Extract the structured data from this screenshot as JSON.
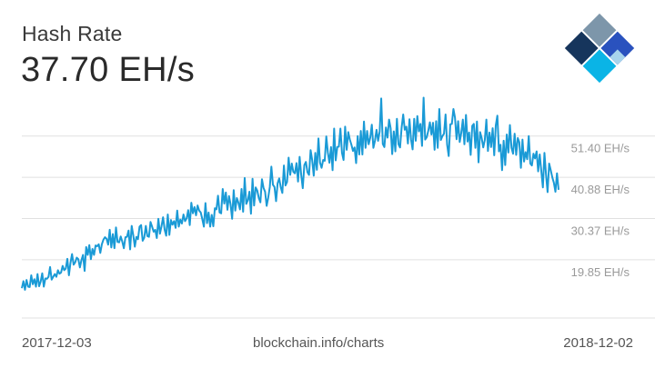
{
  "header": {
    "title": "Hash Rate",
    "current_value": "37.70 EH/s"
  },
  "footer": {
    "start_date": "2017-12-03",
    "source": "blockchain.info/charts",
    "end_date": "2018-12-02"
  },
  "colors": {
    "line": "#1a9ad6",
    "grid": "#e0e0e0",
    "logo_dark": "#16355c",
    "logo_slate": "#7d96aa",
    "logo_blue": "#2a52be",
    "logo_cyan": "#0ab4e6",
    "logo_light": "#a8d4ec"
  },
  "logo": {
    "icon": "blockchain-logo-icon"
  },
  "chart_data": {
    "type": "line",
    "title": "Hash Rate",
    "xlabel": "",
    "ylabel": "",
    "x_start": "2017-12-03",
    "x_end": "2018-12-02",
    "ylim": [
      5.0,
      62.0
    ],
    "yticks": [
      19.85,
      30.37,
      40.88,
      51.4
    ],
    "ytick_labels": [
      "19.85 EH/s",
      "30.37 EH/s",
      "40.88 EH/s",
      "51.40 EH/s"
    ],
    "grid": true,
    "legend": "none",
    "series": [
      {
        "values": [
          12.6,
          14.4,
          12.2,
          14.7,
          13.0,
          12.9,
          15.9,
          13.6,
          14.9,
          13.0,
          16.2,
          13.1,
          14.3,
          16.4,
          13.0,
          15.1,
          15.0,
          15.5,
          18.0,
          14.8,
          15.5,
          16.2,
          15.5,
          17.2,
          16.3,
          16.6,
          18.3,
          17.2,
          17.6,
          20.1,
          15.9,
          19.1,
          21.3,
          18.6,
          19.2,
          20.4,
          20.0,
          17.9,
          19.8,
          21.1,
          17.0,
          23.1,
          21.1,
          23.6,
          20.0,
          22.6,
          21.1,
          23.5,
          23.3,
          23.8,
          21.6,
          23.8,
          25.0,
          25.6,
          25.2,
          23.7,
          27.5,
          23.0,
          26.4,
          22.8,
          28.1,
          24.4,
          24.3,
          25.8,
          24.5,
          22.8,
          25.6,
          25.7,
          27.3,
          22.5,
          28.5,
          26.1,
          23.2,
          25.7,
          25.1,
          28.3,
          28.7,
          24.7,
          25.5,
          28.5,
          25.9,
          25.7,
          29.5,
          28.3,
          27.0,
          27.5,
          25.4,
          30.3,
          26.5,
          28.4,
          30.7,
          27.5,
          26.0,
          31.4,
          26.2,
          30.0,
          28.8,
          29.7,
          28.0,
          32.4,
          28.3,
          30.1,
          29.1,
          31.4,
          29.7,
          30.4,
          32.5,
          28.7,
          34.4,
          31.7,
          33.3,
          31.2,
          33.7,
          32.4,
          31.9,
          30.2,
          28.3,
          34.3,
          29.2,
          31.9,
          28.3,
          31.3,
          28.4,
          33.0,
          32.7,
          36.2,
          31.9,
          31.7,
          37.9,
          34.2,
          37.0,
          32.6,
          36.1,
          34.0,
          30.3,
          37.6,
          32.4,
          35.6,
          34.4,
          32.7,
          37.9,
          32.1,
          40.7,
          34.1,
          35.0,
          37.2,
          31.6,
          40.5,
          33.7,
          38.3,
          37.5,
          35.6,
          34.5,
          40.4,
          38.2,
          37.2,
          33.6,
          35.7,
          38.4,
          43.6,
          39.0,
          38.4,
          34.8,
          39.4,
          40.6,
          38.3,
          36.9,
          43.9,
          38.8,
          39.7,
          45.9,
          41.5,
          44.4,
          42.3,
          41.9,
          44.5,
          39.8,
          46.1,
          41.5,
          38.1,
          44.0,
          44.8,
          42.2,
          41.5,
          47.8,
          45.3,
          41.3,
          47.1,
          42.8,
          50.8,
          44.6,
          43.3,
          45.3,
          45.1,
          51.3,
          47.2,
          44.6,
          48.6,
          42.7,
          53.3,
          45.2,
          48.6,
          48.7,
          53.3,
          47.1,
          45.3,
          53.8,
          47.9,
          52.4,
          50.5,
          49.2,
          47.6,
          48.5,
          44.5,
          51.4,
          46.7,
          52.7,
          46.7,
          55.1,
          48.4,
          52.7,
          49.3,
          51.0,
          54.3,
          48.4,
          50.2,
          53.0,
          50.2,
          52.5,
          61.0,
          49.4,
          48.6,
          53.6,
          51.0,
          55.6,
          53.4,
          46.8,
          52.6,
          47.5,
          55.8,
          49.3,
          48.5,
          53.6,
          56.9,
          53.0,
          53.8,
          49.5,
          55.7,
          50.5,
          48.0,
          55.8,
          50.2,
          56.5,
          52.6,
          54.5,
          48.9,
          61.2,
          50.5,
          51.1,
          52.8,
          54.9,
          51.8,
          54.8,
          47.9,
          55.2,
          48.4,
          58.3,
          50.4,
          51.4,
          52.0,
          56.9,
          49.2,
          46.3,
          54.4,
          54.5,
          58.3,
          56.1,
          50.6,
          55.2,
          49.9,
          52.2,
          55.6,
          49.3,
          56.8,
          50.0,
          52.3,
          46.6,
          54.0,
          54.5,
          48.4,
          55.1,
          44.7,
          52.4,
          50.9,
          48.5,
          50.4,
          55.6,
          47.6,
          52.3,
          48.6,
          53.4,
          46.5,
          54.1,
          56.6,
          47.5,
          49.2,
          42.7,
          50.2,
          44.0,
          51.8,
          47.2,
          54.2,
          48.4,
          46.9,
          52.0,
          46.6,
          50.9,
          49.8,
          43.3,
          50.5,
          44.9,
          47.3,
          45.5,
          51.4,
          44.4,
          43.9,
          46.9,
          45.7,
          47.5,
          42.4,
          46.7,
          42.5,
          38.3,
          47.1,
          41.6,
          37.1,
          44.4,
          42.7,
          40.9,
          39.5,
          37.2,
          41.9,
          37.7
        ]
      }
    ]
  }
}
